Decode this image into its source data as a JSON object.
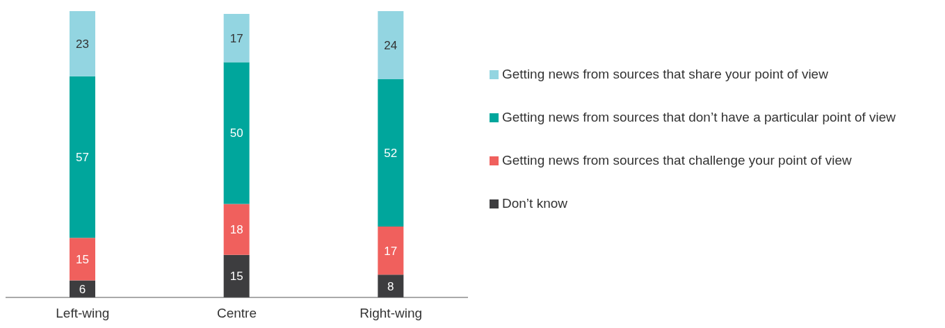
{
  "chart_data": {
    "type": "bar",
    "stacked": true,
    "categories": [
      "Left-wing",
      "Centre",
      "Right-wing"
    ],
    "series": [
      {
        "name": "Don’t know",
        "color": "#3d3d3f",
        "values": [
          6,
          15,
          8
        ]
      },
      {
        "name": "Getting news from sources that challenge your point of view",
        "color": "#f0605d",
        "values": [
          15,
          18,
          17
        ]
      },
      {
        "name": "Getting news from sources that don’t have a particular point of view",
        "color": "#00a69c",
        "values": [
          57,
          50,
          52
        ]
      },
      {
        "name": "Getting news from sources that share your point of view",
        "color": "#93d5e1",
        "values": [
          23,
          17,
          24
        ]
      }
    ],
    "data_labels": true,
    "legend": "right",
    "grid": false,
    "tick_labels": "x"
  }
}
